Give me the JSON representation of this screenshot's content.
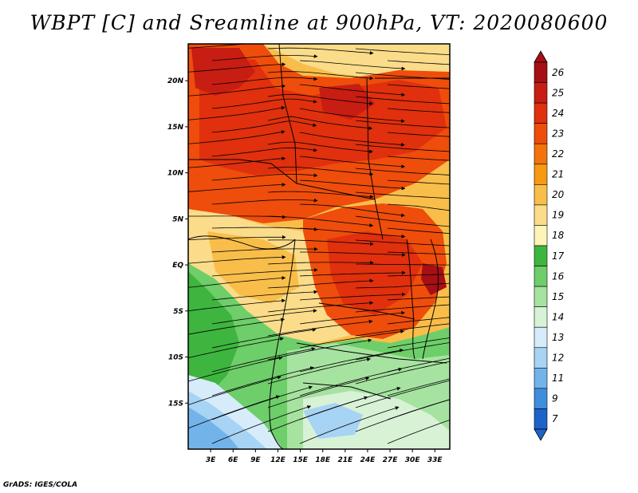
{
  "title": "WBPT [C] and Sreamline at 900hPa, VT: 2020080600",
  "credit": "GrADS: IGES/COLA",
  "map": {
    "lon_range": [
      0,
      35
    ],
    "lat_range": [
      -20,
      24
    ],
    "lon_ticks": [
      "3E",
      "6E",
      "9E",
      "12E",
      "15E",
      "18E",
      "21E",
      "24E",
      "27E",
      "30E",
      "33E"
    ],
    "lat_ticks": [
      "20N",
      "15N",
      "10N",
      "5N",
      "EQ",
      "5S",
      "10S",
      "15S"
    ],
    "field": "Wet-bulb potential temperature with streamlines"
  },
  "colorbar": {
    "labels": [
      "26",
      "25",
      "24",
      "23",
      "22",
      "21",
      "20",
      "19",
      "18",
      "17",
      "16",
      "15",
      "14",
      "13",
      "12",
      "11",
      "9",
      "7"
    ],
    "colors": [
      "#a50f15",
      "#c81d12",
      "#e0300d",
      "#ee4d0b",
      "#f3730a",
      "#f79a10",
      "#f9be4a",
      "#fbdc8a",
      "#fdf4b8",
      "#3eb53e",
      "#6ece6a",
      "#a6e3a0",
      "#d8f2d6",
      "#d6ecfb",
      "#a7d3f4",
      "#72b4ea",
      "#3f8ede",
      "#1e64c8"
    ]
  }
}
